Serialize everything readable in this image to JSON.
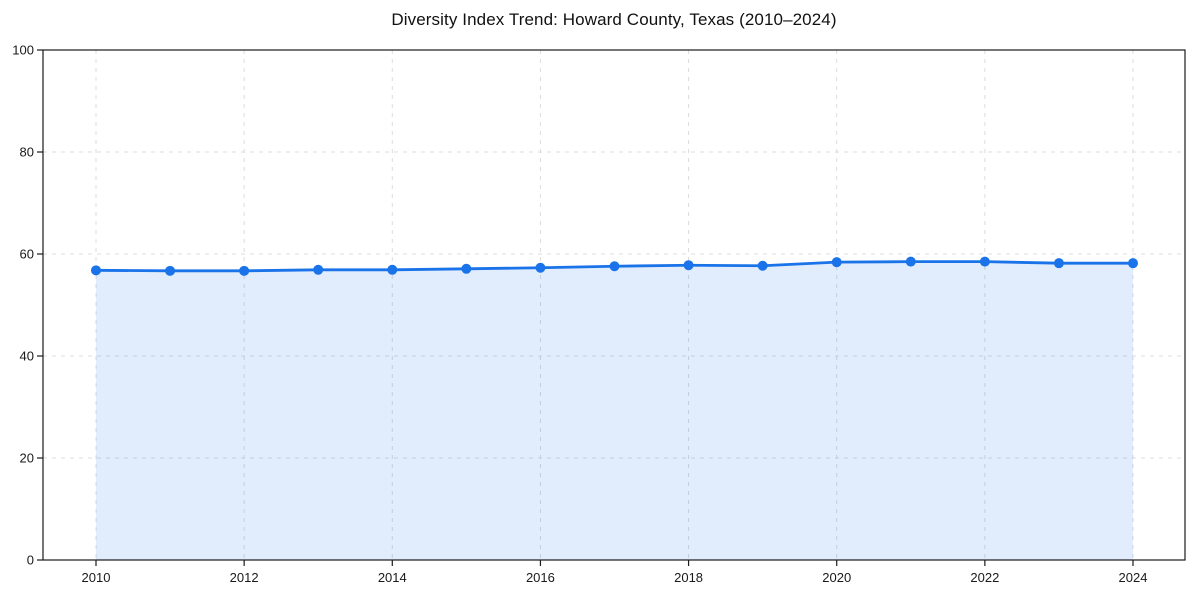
{
  "chart_data": {
    "type": "line",
    "title": "Diversity Index Trend: Howard County, Texas (2010–2024)",
    "x": [
      2010,
      2011,
      2012,
      2013,
      2014,
      2015,
      2016,
      2017,
      2018,
      2019,
      2020,
      2021,
      2022,
      2023,
      2024
    ],
    "series": [
      {
        "name": "Diversity Index",
        "values": [
          56.8,
          56.7,
          56.7,
          56.9,
          56.9,
          57.1,
          57.3,
          57.6,
          57.8,
          57.7,
          58.4,
          58.5,
          58.5,
          58.2,
          58.2
        ]
      }
    ],
    "xticks": [
      2010,
      2012,
      2014,
      2016,
      2018,
      2020,
      2022,
      2024
    ],
    "yticks": [
      0,
      20,
      40,
      60,
      80,
      100
    ],
    "ylim": [
      0,
      100
    ],
    "xlabel": "",
    "ylabel": "",
    "grid": "dashed",
    "legend_position": "none",
    "marker": "circle",
    "area_fill": true,
    "colors": {
      "line": "#1a73e8",
      "marker": "#1a73e8",
      "fill": "rgba(26,115,232,0.13)",
      "grid": "#dcdcdc",
      "axis": "#1a1a1a",
      "tick_label": "#1a1a1a",
      "title": "#111111",
      "background": "#ffffff"
    }
  }
}
